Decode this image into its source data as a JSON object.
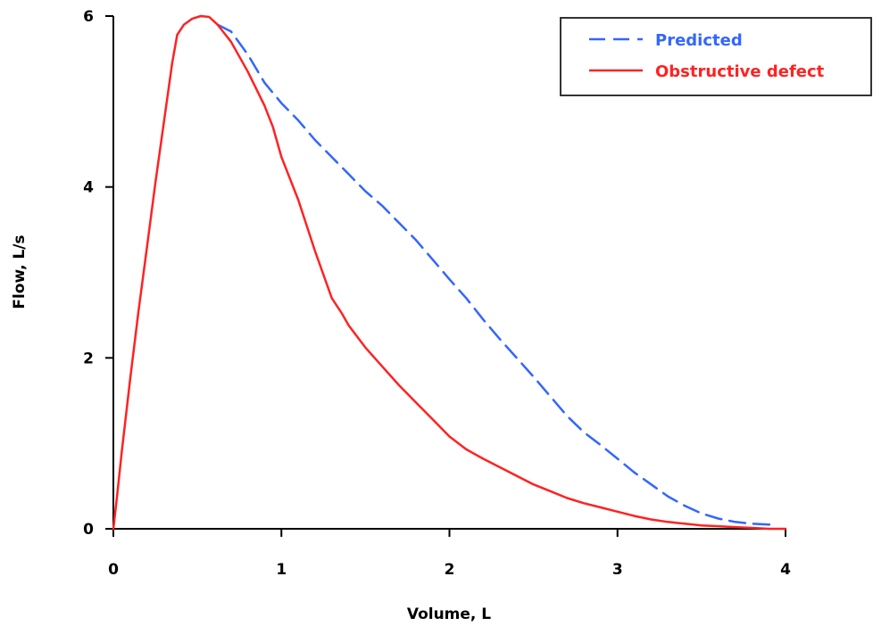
{
  "chart_data": {
    "type": "line",
    "title": "",
    "xlabel": "Volume, L",
    "ylabel": "Flow, L/s",
    "xlim": [
      0,
      4
    ],
    "ylim": [
      0,
      6
    ],
    "xticks": [
      "0",
      "1",
      "2",
      "3",
      "4"
    ],
    "yticks": [
      "0",
      "2",
      "4",
      "6"
    ],
    "grid": false,
    "legend_position": "top-right",
    "series": [
      {
        "name": "Predicted",
        "color": "#3366ff",
        "style": "dashed",
        "points": [
          [
            0.62,
            5.9
          ],
          [
            0.7,
            5.82
          ],
          [
            0.8,
            5.55
          ],
          [
            0.9,
            5.22
          ],
          [
            1.0,
            4.98
          ],
          [
            1.1,
            4.78
          ],
          [
            1.2,
            4.55
          ],
          [
            1.3,
            4.35
          ],
          [
            1.4,
            4.15
          ],
          [
            1.5,
            3.95
          ],
          [
            1.6,
            3.78
          ],
          [
            1.7,
            3.58
          ],
          [
            1.8,
            3.38
          ],
          [
            1.9,
            3.15
          ],
          [
            2.0,
            2.92
          ],
          [
            2.1,
            2.7
          ],
          [
            2.2,
            2.45
          ],
          [
            2.3,
            2.22
          ],
          [
            2.4,
            2.0
          ],
          [
            2.5,
            1.78
          ],
          [
            2.6,
            1.55
          ],
          [
            2.7,
            1.32
          ],
          [
            2.8,
            1.13
          ],
          [
            2.9,
            0.98
          ],
          [
            3.0,
            0.82
          ],
          [
            3.1,
            0.66
          ],
          [
            3.2,
            0.52
          ],
          [
            3.3,
            0.38
          ],
          [
            3.4,
            0.27
          ],
          [
            3.5,
            0.18
          ],
          [
            3.6,
            0.12
          ],
          [
            3.7,
            0.08
          ],
          [
            3.8,
            0.06
          ],
          [
            3.9,
            0.05
          ],
          [
            3.95,
            0.05
          ]
        ]
      },
      {
        "name": "Obstructive defect",
        "color": "#ff2222",
        "style": "solid",
        "points": [
          [
            0.0,
            0.0
          ],
          [
            0.02,
            0.35
          ],
          [
            0.05,
            0.9
          ],
          [
            0.1,
            1.75
          ],
          [
            0.15,
            2.55
          ],
          [
            0.2,
            3.3
          ],
          [
            0.25,
            4.05
          ],
          [
            0.3,
            4.75
          ],
          [
            0.35,
            5.45
          ],
          [
            0.38,
            5.78
          ],
          [
            0.42,
            5.9
          ],
          [
            0.47,
            5.97
          ],
          [
            0.52,
            6.0
          ],
          [
            0.57,
            5.99
          ],
          [
            0.62,
            5.9
          ],
          [
            0.7,
            5.7
          ],
          [
            0.8,
            5.35
          ],
          [
            0.9,
            4.95
          ],
          [
            0.95,
            4.7
          ],
          [
            1.0,
            4.35
          ],
          [
            1.1,
            3.85
          ],
          [
            1.2,
            3.25
          ],
          [
            1.3,
            2.7
          ],
          [
            1.36,
            2.52
          ],
          [
            1.4,
            2.38
          ],
          [
            1.5,
            2.12
          ],
          [
            1.6,
            1.9
          ],
          [
            1.7,
            1.68
          ],
          [
            1.8,
            1.48
          ],
          [
            1.9,
            1.28
          ],
          [
            2.0,
            1.08
          ],
          [
            2.1,
            0.93
          ],
          [
            2.2,
            0.82
          ],
          [
            2.3,
            0.72
          ],
          [
            2.4,
            0.62
          ],
          [
            2.5,
            0.52
          ],
          [
            2.6,
            0.44
          ],
          [
            2.7,
            0.36
          ],
          [
            2.8,
            0.3
          ],
          [
            2.9,
            0.25
          ],
          [
            3.0,
            0.2
          ],
          [
            3.1,
            0.15
          ],
          [
            3.2,
            0.11
          ],
          [
            3.3,
            0.08
          ],
          [
            3.4,
            0.06
          ],
          [
            3.5,
            0.04
          ],
          [
            3.6,
            0.03
          ],
          [
            3.7,
            0.02
          ],
          [
            3.8,
            0.01
          ],
          [
            3.9,
            0.0
          ],
          [
            4.0,
            0.0
          ]
        ]
      }
    ]
  }
}
